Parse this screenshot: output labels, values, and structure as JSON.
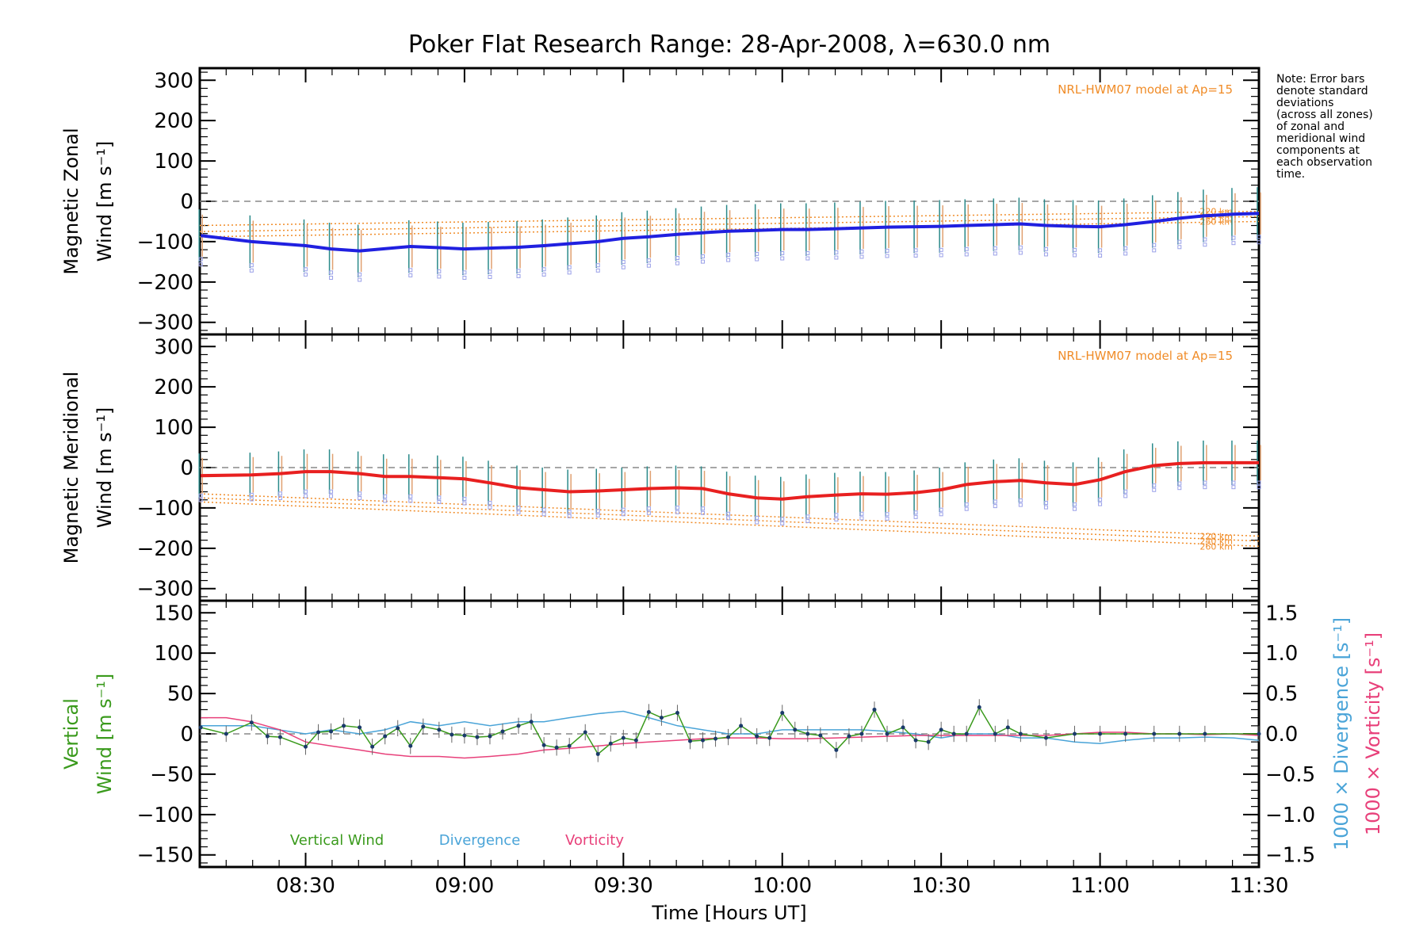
{
  "title": "Poker Flat Research Range: 28-Apr-2008, λ=630.0 nm",
  "note": [
    "Note: Error bars",
    "denote standard",
    "deviations",
    "(across all zones)",
    "of zonal and",
    "meridional wind",
    "components at",
    "each observation",
    "time."
  ],
  "colors": {
    "zonal": "#2020e0",
    "meridional": "#e82020",
    "model": "#f08c28",
    "vertical": "#3a9a1c",
    "divergence": "#4aa4d8",
    "vorticity": "#e8407a",
    "errbar_a": "#2a8a8a",
    "errbar_b": "#e0a070",
    "zone_marker": "#9aa0e8"
  },
  "x_axis": {
    "label": "Time [Hours UT]",
    "tick_labels": [
      "08:30",
      "09:00",
      "09:30",
      "10:00",
      "10:30",
      "11:00",
      "11:30"
    ],
    "range": [
      8.167,
      11.5
    ]
  },
  "chart_data": [
    {
      "type": "line",
      "panel": "zonal",
      "ylabel": [
        "Magnetic Zonal",
        "Wind [m s⁻¹]"
      ],
      "ylim": [
        -330,
        330
      ],
      "y_tick_labels": [
        "300",
        "200",
        "100",
        "0",
        "−100",
        "−200",
        "−300"
      ],
      "model_label": "NRL-HWM07 model at Ap=15",
      "model_series": [
        {
          "name": "220 km",
          "x": [
            8.167,
            11.5
          ],
          "y": [
            -60,
            -25
          ]
        },
        {
          "name": "240 km",
          "x": [
            8.167,
            11.5
          ],
          "y": [
            -75,
            -38
          ]
        },
        {
          "name": "260 km",
          "x": [
            8.167,
            11.5
          ],
          "y": [
            -88,
            -50
          ]
        }
      ],
      "series": [
        {
          "name": "Magnetic Zonal Wind",
          "x": [
            8.17,
            8.33,
            8.5,
            8.58,
            8.67,
            8.83,
            8.92,
            9.0,
            9.08,
            9.17,
            9.25,
            9.33,
            9.42,
            9.5,
            9.58,
            9.67,
            9.75,
            9.83,
            9.92,
            10.0,
            10.08,
            10.17,
            10.25,
            10.33,
            10.42,
            10.5,
            10.58,
            10.67,
            10.75,
            10.83,
            10.92,
            11.0,
            11.08,
            11.17,
            11.25,
            11.33,
            11.42,
            11.5
          ],
          "y": [
            -85,
            -100,
            -110,
            -118,
            -123,
            -112,
            -115,
            -118,
            -116,
            -114,
            -110,
            -105,
            -100,
            -92,
            -88,
            -82,
            -78,
            -74,
            -72,
            -70,
            -70,
            -68,
            -66,
            -64,
            -63,
            -62,
            -60,
            -58,
            -56,
            -60,
            -62,
            -63,
            -58,
            -50,
            -42,
            -36,
            -32,
            -30
          ]
        }
      ],
      "error_halfwidth": 65
    },
    {
      "type": "line",
      "panel": "meridional",
      "ylabel": [
        "Magnetic Meridional",
        "Wind [m s⁻¹]"
      ],
      "ylim": [
        -330,
        330
      ],
      "y_tick_labels": [
        "300",
        "200",
        "100",
        "0",
        "−100",
        "−200",
        "−300"
      ],
      "model_label": "NRL-HWM07 model at Ap=15",
      "model_series": [
        {
          "name": "220 km",
          "x": [
            8.167,
            11.5
          ],
          "y": [
            -65,
            -170
          ]
        },
        {
          "name": "240 km",
          "x": [
            8.167,
            11.5
          ],
          "y": [
            -75,
            -182
          ]
        },
        {
          "name": "260 km",
          "x": [
            8.167,
            11.5
          ],
          "y": [
            -85,
            -195
          ]
        }
      ],
      "series": [
        {
          "name": "Magnetic Meridional Wind",
          "x": [
            8.17,
            8.33,
            8.42,
            8.5,
            8.58,
            8.67,
            8.75,
            8.83,
            8.92,
            9.0,
            9.08,
            9.17,
            9.25,
            9.33,
            9.42,
            9.5,
            9.58,
            9.67,
            9.75,
            9.83,
            9.92,
            10.0,
            10.08,
            10.17,
            10.25,
            10.33,
            10.42,
            10.5,
            10.58,
            10.67,
            10.75,
            10.83,
            10.92,
            11.0,
            11.08,
            11.17,
            11.25,
            11.33,
            11.42,
            11.5
          ],
          "y": [
            -20,
            -18,
            -15,
            -10,
            -10,
            -15,
            -22,
            -22,
            -25,
            -28,
            -38,
            -50,
            -55,
            -60,
            -58,
            -55,
            -52,
            -50,
            -52,
            -65,
            -75,
            -78,
            -72,
            -68,
            -65,
            -66,
            -62,
            -55,
            -42,
            -35,
            -32,
            -38,
            -42,
            -30,
            -10,
            5,
            10,
            12,
            12,
            12
          ]
        }
      ],
      "error_halfwidth": 55
    },
    {
      "type": "line",
      "panel": "vertical",
      "ylabel": [
        "Vertical",
        "Wind [m s⁻¹]"
      ],
      "ylim": [
        -165,
        165
      ],
      "y_tick_labels": [
        "150",
        "100",
        "50",
        "0",
        "−50",
        "−100",
        "−150"
      ],
      "y2_label_divergence": "1000 × Divergence [s⁻¹]",
      "y2_label_vorticity": "1000 × Vorticity [s⁻¹]",
      "y2_lim": [
        -1.65,
        1.65
      ],
      "y2_tick_labels": [
        "1.5",
        "1.0",
        "0.5",
        "0.0",
        "−0.5",
        "−1.0",
        "−1.5"
      ],
      "legend": [
        "Vertical Wind",
        "Divergence",
        "Vorticity"
      ],
      "series": [
        {
          "name": "Vertical Wind",
          "x": [
            8.17,
            8.25,
            8.33,
            8.38,
            8.42,
            8.5,
            8.54,
            8.58,
            8.62,
            8.67,
            8.71,
            8.75,
            8.79,
            8.83,
            8.87,
            8.92,
            8.96,
            9.0,
            9.04,
            9.08,
            9.12,
            9.17,
            9.21,
            9.25,
            9.29,
            9.33,
            9.38,
            9.42,
            9.46,
            9.5,
            9.54,
            9.58,
            9.62,
            9.67,
            9.71,
            9.75,
            9.79,
            9.83,
            9.87,
            9.92,
            9.96,
            10.0,
            10.04,
            10.08,
            10.12,
            10.17,
            10.21,
            10.25,
            10.29,
            10.33,
            10.38,
            10.42,
            10.46,
            10.5,
            10.54,
            10.58,
            10.62,
            10.67,
            10.71,
            10.75,
            10.83,
            10.92,
            11.0,
            11.08,
            11.17,
            11.25,
            11.33,
            11.5
          ],
          "y": [
            8,
            0,
            14,
            -3,
            -4,
            -16,
            2,
            3,
            10,
            8,
            -16,
            -3,
            7,
            -15,
            9,
            5,
            -1,
            -2,
            -4,
            -3,
            3,
            10,
            15,
            -14,
            -17,
            -15,
            2,
            -25,
            -12,
            -5,
            -8,
            27,
            20,
            26,
            -9,
            -8,
            -6,
            -4,
            10,
            -3,
            -5,
            26,
            5,
            0,
            -2,
            -20,
            -3,
            0,
            30,
            0,
            8,
            -8,
            -10,
            5,
            0,
            0,
            33,
            0,
            8,
            0,
            -5,
            0,
            0,
            0,
            0,
            0,
            0,
            0
          ]
        },
        {
          "name": "Divergence",
          "x": [
            8.17,
            8.33,
            8.5,
            8.58,
            8.67,
            8.75,
            8.83,
            8.92,
            9.0,
            9.08,
            9.17,
            9.25,
            9.33,
            9.42,
            9.5,
            9.58,
            9.67,
            9.75,
            9.83,
            9.92,
            10.0,
            10.08,
            10.17,
            10.25,
            10.33,
            10.42,
            10.5,
            10.58,
            10.67,
            10.75,
            10.83,
            10.92,
            11.0,
            11.08,
            11.17,
            11.25,
            11.33,
            11.42,
            11.5
          ],
          "y": [
            0.1,
            0.1,
            0.0,
            0.05,
            0.0,
            0.05,
            0.15,
            0.1,
            0.15,
            0.1,
            0.15,
            0.15,
            0.2,
            0.25,
            0.28,
            0.2,
            0.1,
            0.05,
            0.0,
            0.0,
            0.05,
            0.05,
            0.05,
            0.05,
            0.03,
            0.0,
            -0.05,
            0.0,
            0.0,
            -0.05,
            -0.05,
            -0.1,
            -0.12,
            -0.08,
            -0.05,
            -0.05,
            -0.04,
            -0.05,
            -0.08
          ]
        },
        {
          "name": "Vorticity",
          "x": [
            8.17,
            8.25,
            8.33,
            8.42,
            8.5,
            8.58,
            8.67,
            8.75,
            8.83,
            8.92,
            9.0,
            9.08,
            9.17,
            9.25,
            9.33,
            9.42,
            9.5,
            9.58,
            9.67,
            9.75,
            9.83,
            9.92,
            10.0,
            10.08,
            10.17,
            10.25,
            10.33,
            10.42,
            10.5,
            10.58,
            10.67,
            10.75,
            10.83,
            10.92,
            11.0,
            11.08,
            11.17,
            11.25,
            11.33,
            11.42,
            11.5
          ],
          "y": [
            0.2,
            0.2,
            0.15,
            0.05,
            -0.1,
            -0.15,
            -0.2,
            -0.25,
            -0.28,
            -0.28,
            -0.3,
            -0.28,
            -0.25,
            -0.2,
            -0.18,
            -0.15,
            -0.12,
            -0.1,
            -0.08,
            -0.06,
            -0.05,
            -0.05,
            -0.06,
            -0.06,
            -0.05,
            -0.04,
            -0.03,
            -0.02,
            -0.02,
            -0.02,
            -0.02,
            -0.02,
            -0.02,
            0.0,
            0.02,
            0.02,
            0.0,
            0.0,
            -0.01,
            0.0,
            -0.02
          ]
        }
      ]
    }
  ]
}
